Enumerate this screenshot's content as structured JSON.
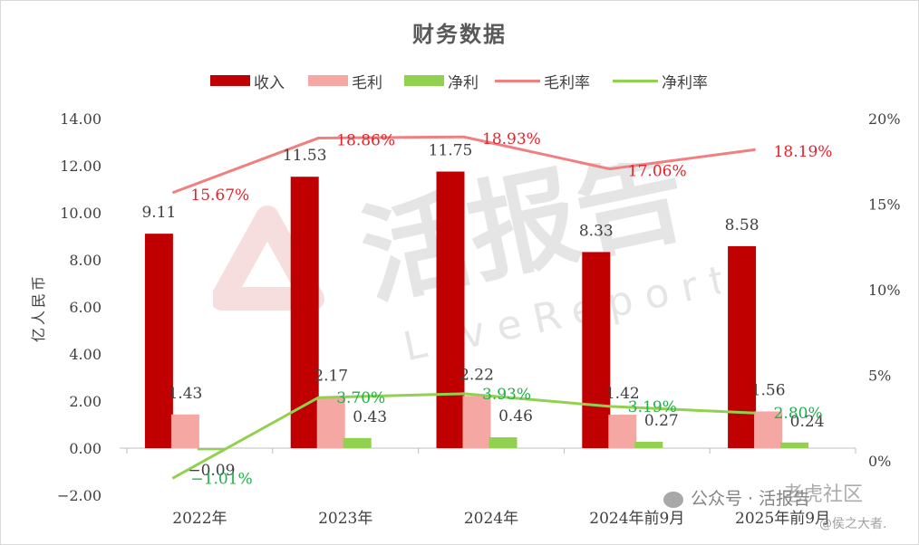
{
  "chart_data": {
    "type": "bar",
    "title": "财务数据",
    "ylabel": "亿人民币",
    "categories": [
      "2022年",
      "2023年",
      "2024年",
      "2024年前9月",
      "2025年前9月"
    ],
    "ylim": [
      -2,
      14
    ],
    "y_ticks": [
      "14.00",
      "12.00",
      "10.00",
      "8.00",
      "6.00",
      "4.00",
      "2.00",
      "0.00",
      "-2.00"
    ],
    "y2lim": [
      -0.02,
      0.2
    ],
    "y2_ticks": [
      "20%",
      "15%",
      "10%",
      "5%",
      "0%"
    ],
    "series": [
      {
        "name": "收入",
        "kind": "bar",
        "color": "#c00000",
        "values": [
          9.11,
          11.53,
          11.75,
          8.33,
          8.58
        ],
        "labels": [
          "9.11",
          "11.53",
          "11.75",
          "8.33",
          "8.58"
        ]
      },
      {
        "name": "毛利",
        "kind": "bar",
        "color": "#f4a7a3",
        "values": [
          1.43,
          2.17,
          2.22,
          1.42,
          1.56
        ],
        "labels": [
          "1.43",
          "2.17",
          "2.22",
          "1.42",
          "1.56"
        ]
      },
      {
        "name": "净利",
        "kind": "bar",
        "color": "#92d050",
        "values": [
          -0.09,
          0.43,
          0.46,
          0.27,
          0.24
        ],
        "labels": [
          "-0.09",
          "0.43",
          "0.46",
          "0.27",
          "0.24"
        ]
      },
      {
        "name": "毛利率",
        "kind": "line",
        "color": "#f08080",
        "label_color": "#e8202a",
        "values": [
          0.1567,
          0.1886,
          0.1893,
          0.1706,
          0.1819
        ],
        "labels": [
          "15.67%",
          "18.86%",
          "18.93%",
          "17.06%",
          "18.19%"
        ]
      },
      {
        "name": "净利率",
        "kind": "line",
        "color": "#92d050",
        "label_color": "#1fb04a",
        "values": [
          -0.0101,
          0.037,
          0.0393,
          0.0319,
          0.028
        ],
        "labels": [
          "-1.01%",
          "3.70%",
          "3.93%",
          "3.19%",
          "2.80%"
        ]
      }
    ],
    "legend_position": "top",
    "grid": false
  },
  "watermark": {
    "main": "活报告",
    "sub": "LiveReport",
    "bottom_left": "公众号 · 活报告",
    "bottom_right_top": "老虎社区",
    "bottom_right_bottom": "@侯之大者."
  }
}
